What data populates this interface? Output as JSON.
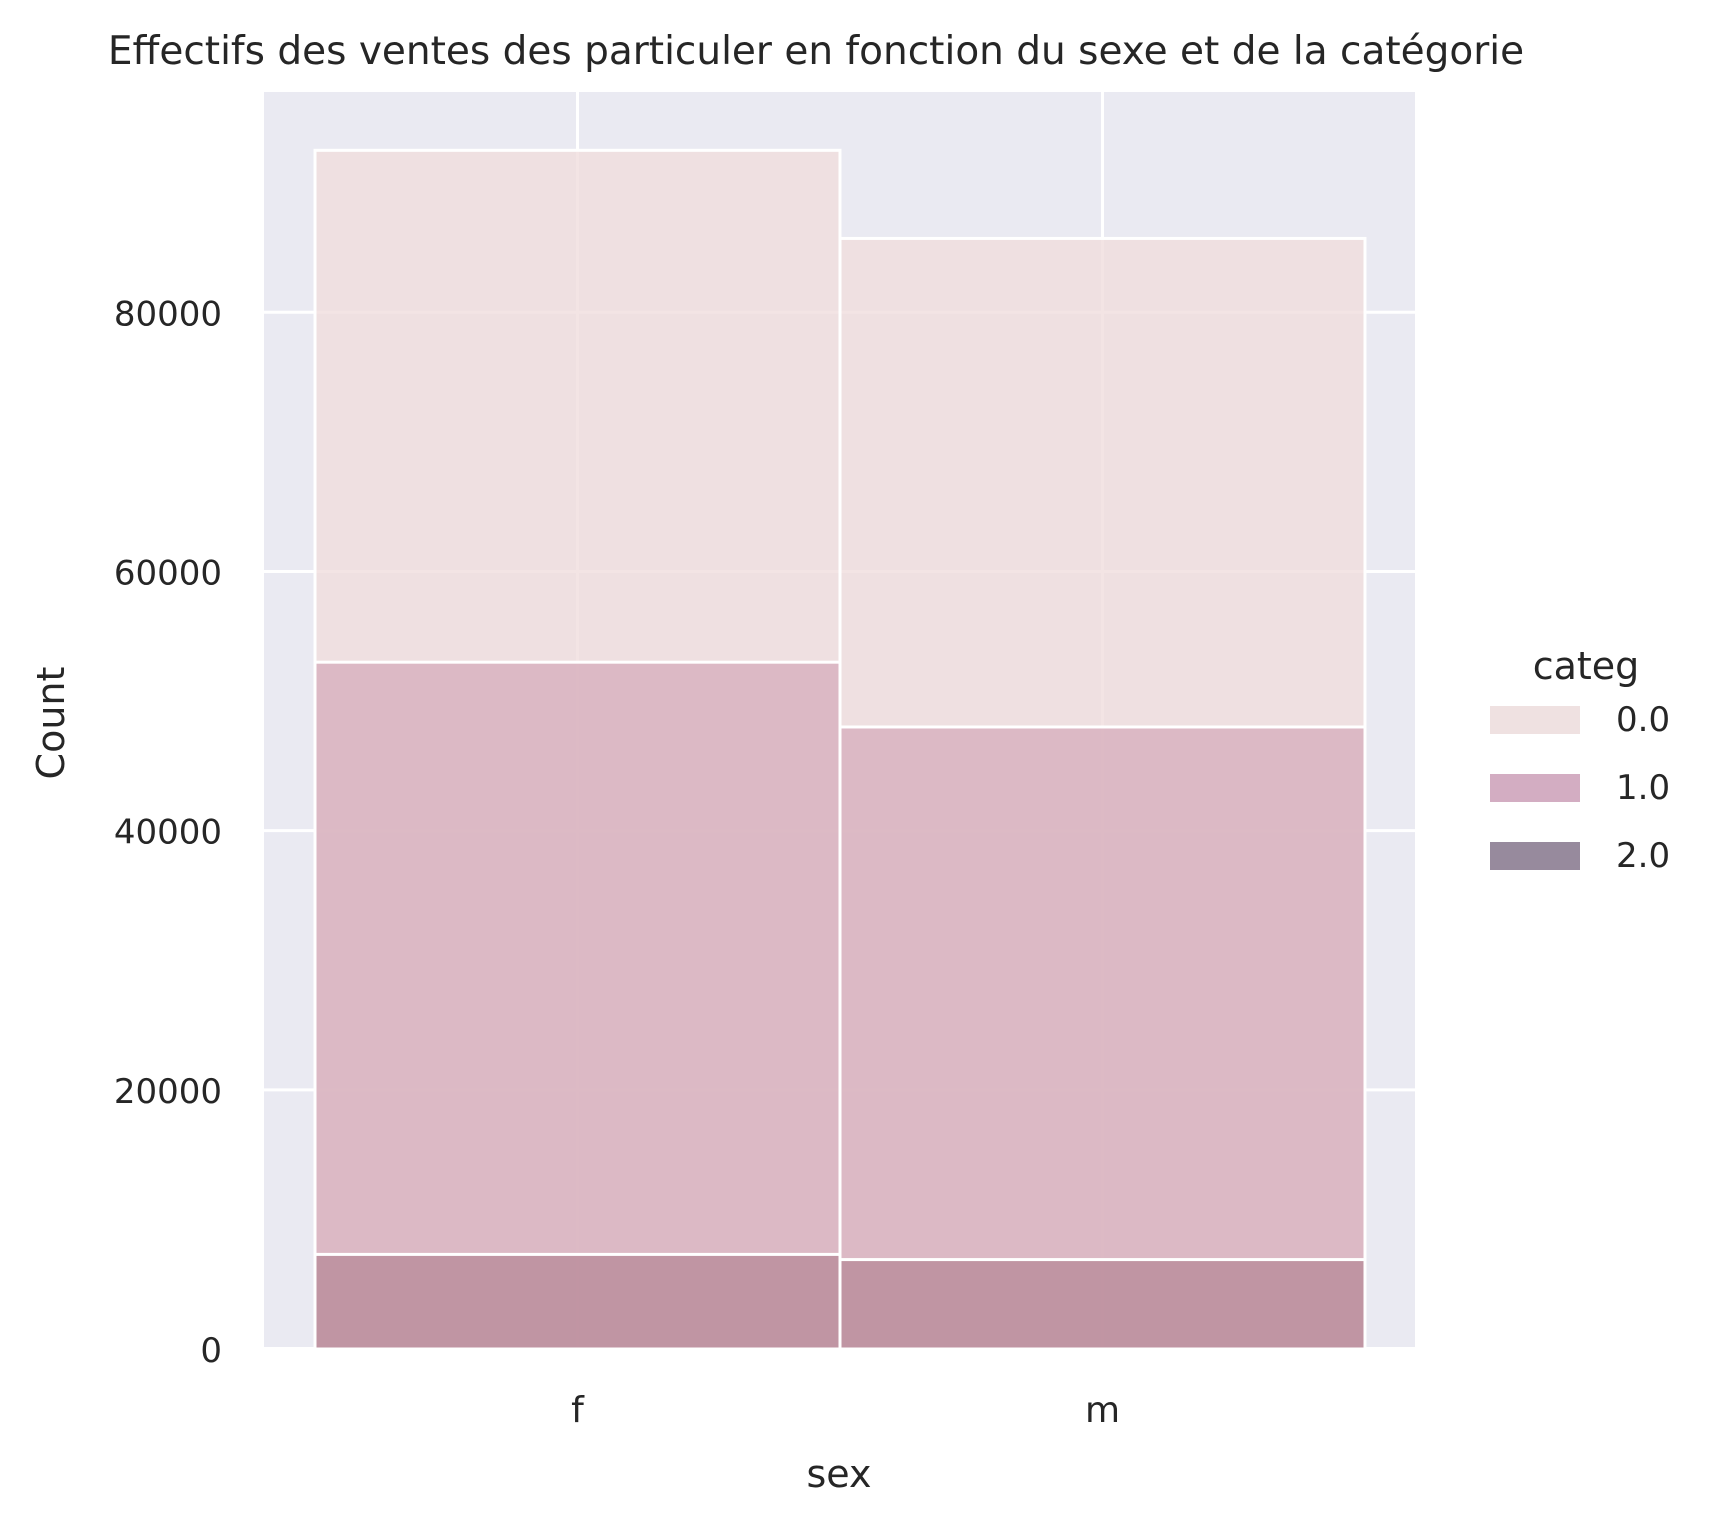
{
  "chart_data": {
    "type": "bar",
    "title": "Effectifs des ventes des particuler en fonction du sexe et de la catégorie",
    "xlabel": "sex",
    "ylabel": "Count",
    "categories": [
      "f",
      "m"
    ],
    "ylim": [
      0,
      97000
    ],
    "yticks": [
      0,
      20000,
      40000,
      60000,
      80000
    ],
    "ytick_labels": [
      "0",
      "20000",
      "40000",
      "60000",
      "80000"
    ],
    "grid": true,
    "overlay": "layered",
    "legend": {
      "title": "categ",
      "placement": "right"
    },
    "series": [
      {
        "name": "0.0",
        "values": [
          92500,
          85700
        ],
        "color": "#f0dcdc",
        "legend_color": "#efe1e1"
      },
      {
        "name": "1.0",
        "values": [
          53000,
          48000
        ],
        "color": "#d6aebd",
        "legend_color": "#d3adc2"
      },
      {
        "name": "2.0",
        "values": [
          7300,
          6900
        ],
        "color": "#b98a9a",
        "legend_color": "#978a9d"
      }
    ],
    "colors": {
      "plot_background": "#eaeaf2",
      "grid": "#ffffff",
      "text": "#262626"
    }
  }
}
